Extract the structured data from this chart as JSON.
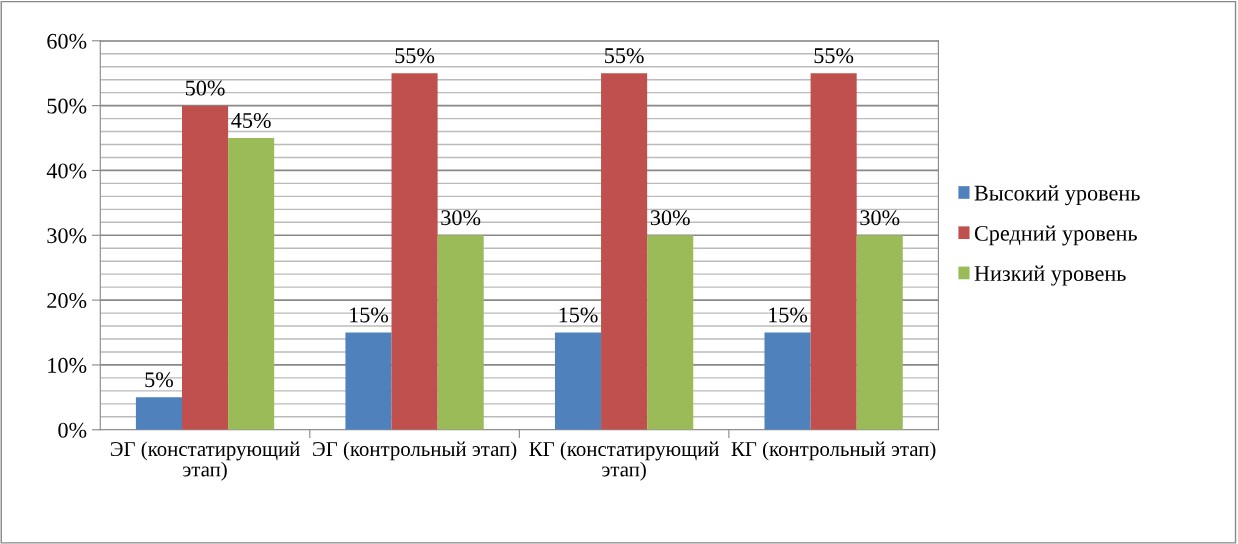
{
  "chart_data": {
    "type": "bar",
    "categories": [
      "ЭГ (констатирующий этап)",
      "ЭГ (контрольный этап)",
      "КГ (констатирующий этап)",
      "КГ (контрольный этап)"
    ],
    "series": [
      {
        "name": "Высокий уровень",
        "color": "#4f81bd",
        "values": [
          5,
          15,
          15,
          15
        ]
      },
      {
        "name": "Средний уровень",
        "color": "#c0504d",
        "values": [
          50,
          55,
          55,
          55
        ]
      },
      {
        "name": "Низкий уровень",
        "color": "#9bbb59",
        "values": [
          45,
          30,
          30,
          30
        ]
      }
    ],
    "ylim": [
      0,
      60
    ],
    "yticks": [
      {
        "value": 0,
        "label": "0%"
      },
      {
        "value": 10,
        "label": "10%"
      },
      {
        "value": 20,
        "label": "20%"
      },
      {
        "value": 30,
        "label": "30%"
      },
      {
        "value": 40,
        "label": "40%"
      },
      {
        "value": 50,
        "label": "50%"
      },
      {
        "value": 60,
        "label": "60%"
      }
    ],
    "value_labels": [
      [
        "5%",
        "15%",
        "15%",
        "15%"
      ],
      [
        "50%",
        "55%",
        "55%",
        "55%"
      ],
      [
        "45%",
        "30%",
        "30%",
        "30%"
      ]
    ],
    "grid": "y",
    "legend": "right"
  }
}
